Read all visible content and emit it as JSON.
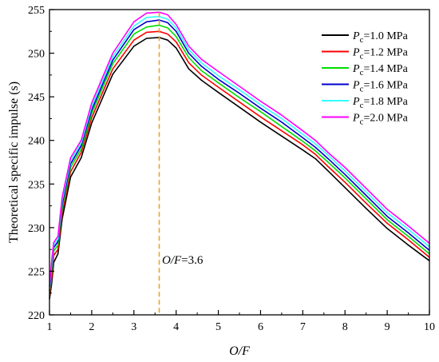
{
  "chart_data": {
    "type": "line",
    "xlabel": "O/F",
    "ylabel": "Theoretical specific impulse (s)",
    "xlim": [
      1,
      10
    ],
    "ylim": [
      220,
      255
    ],
    "xticks": [
      1,
      2,
      3,
      4,
      5,
      6,
      7,
      8,
      9,
      10
    ],
    "yticks": [
      220,
      225,
      230,
      235,
      240,
      245,
      250,
      255
    ],
    "x": [
      1.0,
      1.05,
      1.1,
      1.2,
      1.3,
      1.5,
      1.75,
      2.0,
      2.5,
      3.0,
      3.3,
      3.6,
      3.8,
      4.0,
      4.3,
      4.6,
      5.0,
      5.5,
      6.0,
      6.5,
      7.0,
      7.3,
      7.6,
      8.0,
      8.5,
      9.0,
      9.5,
      10.0
    ],
    "series": [
      {
        "name": "Pc=1.0 MPa",
        "sub_main": "P",
        "sub": "c",
        "rest": "=1.0 MPa",
        "color": "#000000",
        "values": [
          221.8,
          223.5,
          226.0,
          227.0,
          231.0,
          235.8,
          238.0,
          242.0,
          247.6,
          250.8,
          251.7,
          251.8,
          251.5,
          250.6,
          248.2,
          246.9,
          245.5,
          243.8,
          242.1,
          240.5,
          238.9,
          237.9,
          236.5,
          234.6,
          232.2,
          229.9,
          228.0,
          226.2
        ]
      },
      {
        "name": "Pc=1.2 MPa",
        "sub_main": "P",
        "sub": "c",
        "rest": "=1.2 MPa",
        "color": "#ff0000",
        "values": [
          222.1,
          224.2,
          226.8,
          227.5,
          231.7,
          236.4,
          238.6,
          242.6,
          248.2,
          251.5,
          252.4,
          252.5,
          252.2,
          251.3,
          248.9,
          247.5,
          246.1,
          244.4,
          242.7,
          241.1,
          239.5,
          238.4,
          237.0,
          235.2,
          232.8,
          230.5,
          228.6,
          226.6
        ]
      },
      {
        "name": "Pc=1.4 MPa",
        "sub_main": "P",
        "sub": "c",
        "rest": "=1.4 MPa",
        "color": "#00dd00",
        "values": [
          222.4,
          224.8,
          227.3,
          228.0,
          232.2,
          236.9,
          239.0,
          243.1,
          248.8,
          252.2,
          253.0,
          253.2,
          252.9,
          251.9,
          249.5,
          248.0,
          246.6,
          244.9,
          243.3,
          241.6,
          239.9,
          238.8,
          237.5,
          235.7,
          233.3,
          230.9,
          229.0,
          227.0
        ]
      },
      {
        "name": "Pc=1.6 MPa",
        "sub_main": "P",
        "sub": "c",
        "rest": "=1.6 MPa",
        "color": "#0000cc",
        "values": [
          222.7,
          225.3,
          227.7,
          228.4,
          232.7,
          237.3,
          239.4,
          243.5,
          249.2,
          252.7,
          253.6,
          253.8,
          253.5,
          252.5,
          250.0,
          248.5,
          247.0,
          245.4,
          243.7,
          242.1,
          240.3,
          239.2,
          237.9,
          236.1,
          233.7,
          231.3,
          229.4,
          227.4
        ]
      },
      {
        "name": "Pc=1.8 MPa",
        "sub_main": "P",
        "sub": "c",
        "rest": "=1.8 MPa",
        "color": "#33ffff",
        "values": [
          222.9,
          225.7,
          228.0,
          228.7,
          233.1,
          237.7,
          239.7,
          243.9,
          249.6,
          253.1,
          254.1,
          254.2,
          253.9,
          252.9,
          250.4,
          248.9,
          247.4,
          245.8,
          244.1,
          242.5,
          240.7,
          239.6,
          238.3,
          236.5,
          234.1,
          231.7,
          229.8,
          227.8
        ]
      },
      {
        "name": "Pc=2.0 MPa",
        "sub_main": "P",
        "sub": "c",
        "rest": "=2.0 MPa",
        "color": "#ff00ff",
        "values": [
          223.2,
          226.1,
          228.3,
          229.0,
          233.5,
          238.0,
          240.0,
          244.3,
          250.0,
          253.6,
          254.6,
          254.7,
          254.4,
          253.3,
          250.8,
          249.3,
          247.9,
          246.2,
          244.5,
          242.9,
          241.1,
          240.0,
          238.6,
          236.9,
          234.5,
          232.1,
          230.2,
          228.2
        ]
      }
    ],
    "annotation": {
      "main": "O/F",
      "rest": "=3.6",
      "x": 3.6,
      "color": "#f0a020"
    },
    "legend_position": "top-right",
    "grid": false
  }
}
